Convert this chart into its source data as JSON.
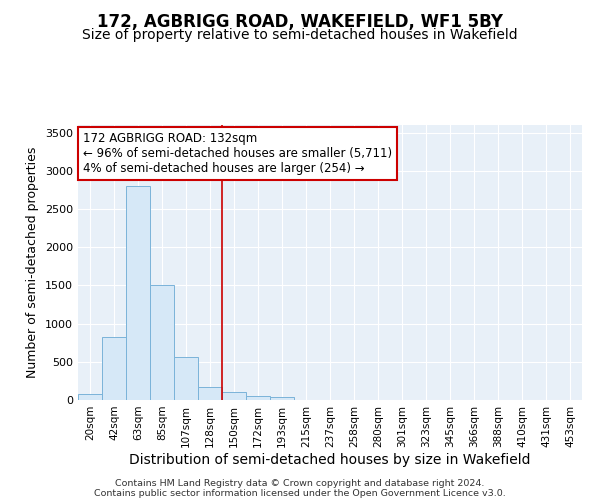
{
  "title": "172, AGBRIGG ROAD, WAKEFIELD, WF1 5BY",
  "subtitle": "Size of property relative to semi-detached houses in Wakefield",
  "xlabel": "Distribution of semi-detached houses by size in Wakefield",
  "ylabel": "Number of semi-detached properties",
  "categories": [
    "20sqm",
    "42sqm",
    "63sqm",
    "85sqm",
    "107sqm",
    "128sqm",
    "150sqm",
    "172sqm",
    "193sqm",
    "215sqm",
    "237sqm",
    "258sqm",
    "280sqm",
    "301sqm",
    "323sqm",
    "345sqm",
    "366sqm",
    "388sqm",
    "410sqm",
    "431sqm",
    "453sqm"
  ],
  "values": [
    75,
    820,
    2800,
    1500,
    560,
    175,
    100,
    55,
    40,
    5,
    0,
    0,
    0,
    0,
    0,
    0,
    0,
    0,
    0,
    0,
    0
  ],
  "bar_color": "#d6e8f7",
  "bar_edge_color": "#7ab3d9",
  "vline_x_index": 5.5,
  "vline_color": "#cc0000",
  "annotation_line1": "172 AGBRIGG ROAD: 132sqm",
  "annotation_line2": "← 96% of semi-detached houses are smaller (5,711)",
  "annotation_line3": "4% of semi-detached houses are larger (254) →",
  "annotation_box_color": "#ffffff",
  "annotation_box_edge_color": "#cc0000",
  "ylim": [
    0,
    3600
  ],
  "yticks": [
    0,
    500,
    1000,
    1500,
    2000,
    2500,
    3000,
    3500
  ],
  "background_color": "#e8f0f8",
  "footer_line1": "Contains HM Land Registry data © Crown copyright and database right 2024.",
  "footer_line2": "Contains public sector information licensed under the Open Government Licence v3.0.",
  "title_fontsize": 12,
  "subtitle_fontsize": 10,
  "ylabel_fontsize": 9,
  "xlabel_fontsize": 10
}
